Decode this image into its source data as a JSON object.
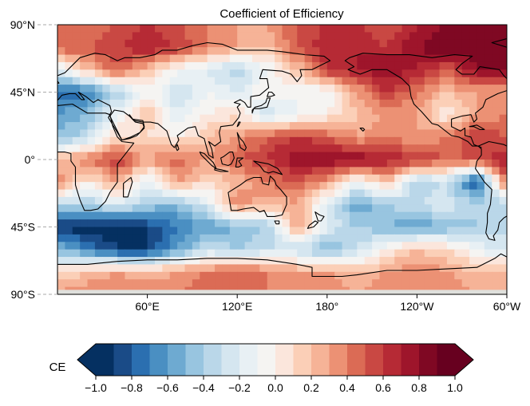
{
  "chart_data": {
    "type": "heatmap",
    "title": "Coefficient of Efficiency",
    "projection": "PlateCarree, central longitude 180",
    "lon_range": [
      0,
      300
    ],
    "lat_range": [
      -90,
      90
    ],
    "x_ticks": [
      {
        "lon": 60,
        "label": "60°E"
      },
      {
        "lon": 120,
        "label": "120°E"
      },
      {
        "lon": 180,
        "label": "180°"
      },
      {
        "lon": 240,
        "label": "120°W"
      },
      {
        "lon": 300,
        "label": "60°W"
      }
    ],
    "y_ticks": [
      {
        "lat": 90,
        "label": "90°N"
      },
      {
        "lat": 45,
        "label": "45°N"
      },
      {
        "lat": 0,
        "label": "0°"
      },
      {
        "lat": -45,
        "label": "45°S"
      },
      {
        "lat": -90,
        "label": "90°S"
      }
    ],
    "grid": "dashed tick stubs only",
    "colorbar": {
      "label": "CE",
      "placement": "bottom",
      "range": [
        -1.0,
        1.0
      ],
      "step": 0.1,
      "extend": "both",
      "cmap": "RdBu_r",
      "tick_values": [
        -1.0,
        -0.8,
        -0.6,
        -0.4,
        -0.2,
        0.0,
        0.2,
        0.4,
        0.6,
        0.8,
        1.0
      ],
      "tick_labels": [
        "−1.0",
        "−0.8",
        "−0.6",
        "−0.4",
        "−0.2",
        "0.0",
        "0.2",
        "0.4",
        "0.6",
        "0.8",
        "1.0"
      ],
      "colors": [
        "#053061",
        "#1a4b87",
        "#2b6fb0",
        "#4a8fc2",
        "#6eaad1",
        "#98c5e0",
        "#bad7e9",
        "#d5e6f0",
        "#e8f0f4",
        "#f5f4f2",
        "#fbe6dc",
        "#fbcfb7",
        "#f6b397",
        "#ec9174",
        "#db6b55",
        "#c94843",
        "#b62a35",
        "#9e152b",
        "#7f0823",
        "#67001f"
      ],
      "under_color": "#053061",
      "over_color": "#67001f"
    },
    "field": {
      "lon_points": [
        0,
        20,
        40,
        60,
        80,
        100,
        120,
        140,
        160,
        180,
        200,
        220,
        240,
        260,
        280,
        300
      ],
      "lat_points": [
        90,
        75,
        60,
        45,
        30,
        15,
        0,
        -15,
        -30,
        -45,
        -60,
        -75,
        -90
      ],
      "values": [
        [
          0.4,
          0.4,
          0.5,
          0.6,
          0.5,
          0.4,
          0.3,
          0.3,
          0.5,
          0.6,
          0.6,
          0.5,
          0.7,
          0.8,
          0.8,
          0.8
        ],
        [
          0.5,
          0.5,
          0.6,
          0.7,
          0.6,
          0.4,
          0.3,
          0.2,
          0.5,
          0.7,
          0.7,
          0.6,
          0.8,
          0.9,
          0.9,
          0.8
        ],
        [
          -0.2,
          0.2,
          0.5,
          0.2,
          -0.1,
          -0.2,
          -0.4,
          -0.1,
          0.2,
          0.6,
          0.7,
          0.8,
          0.7,
          0.5,
          0.8,
          0.9
        ],
        [
          -0.8,
          -0.7,
          -0.4,
          0.0,
          -0.3,
          -0.1,
          -0.2,
          0.0,
          -0.1,
          -0.1,
          0.3,
          0.6,
          0.4,
          0.2,
          0.3,
          0.3
        ],
        [
          -0.6,
          -0.5,
          -0.1,
          0.2,
          -0.2,
          0.0,
          0.1,
          -0.3,
          -0.1,
          0.0,
          0.2,
          0.3,
          0.3,
          0.0,
          0.3,
          0.4
        ],
        [
          -0.5,
          -0.3,
          0.1,
          0.1,
          0.0,
          0.2,
          0.3,
          0.5,
          0.6,
          0.5,
          0.3,
          0.4,
          0.3,
          0.4,
          0.6,
          0.5
        ],
        [
          0.2,
          0.4,
          0.6,
          0.3,
          0.5,
          0.3,
          0.5,
          0.6,
          0.8,
          0.8,
          0.8,
          0.7,
          0.6,
          0.5,
          0.5,
          0.7
        ],
        [
          0.4,
          0.0,
          0.3,
          -0.2,
          0.3,
          0.1,
          0.2,
          0.4,
          0.5,
          0.3,
          -0.1,
          0.2,
          -0.4,
          -0.3,
          -0.9,
          0.5
        ],
        [
          -0.3,
          -0.4,
          -0.2,
          -0.4,
          -0.5,
          -0.2,
          0.4,
          0.2,
          0.3,
          -0.2,
          -0.6,
          -0.4,
          -0.3,
          -0.2,
          -0.4,
          -0.4
        ],
        [
          -0.9,
          -1.0,
          -1.0,
          -0.9,
          -0.7,
          -0.6,
          -0.5,
          -0.4,
          0.3,
          -0.2,
          -0.4,
          -0.5,
          -0.6,
          -0.5,
          -0.4,
          -0.3
        ],
        [
          -0.5,
          -0.7,
          -0.9,
          -0.9,
          -0.6,
          -0.3,
          -0.4,
          -0.3,
          -0.3,
          -0.5,
          -0.3,
          0.0,
          0.2,
          0.1,
          -0.1,
          -0.3
        ],
        [
          0.1,
          0.2,
          0.3,
          0.2,
          0.3,
          0.4,
          0.5,
          0.4,
          0.3,
          0.3,
          0.2,
          0.3,
          0.4,
          0.3,
          0.2,
          0.3
        ],
        [
          0.3,
          0.4,
          0.4,
          0.4,
          0.4,
          0.5,
          0.5,
          0.4,
          0.4,
          0.4,
          0.3,
          0.4,
          0.4,
          0.4,
          0.3,
          0.3
        ]
      ]
    }
  }
}
